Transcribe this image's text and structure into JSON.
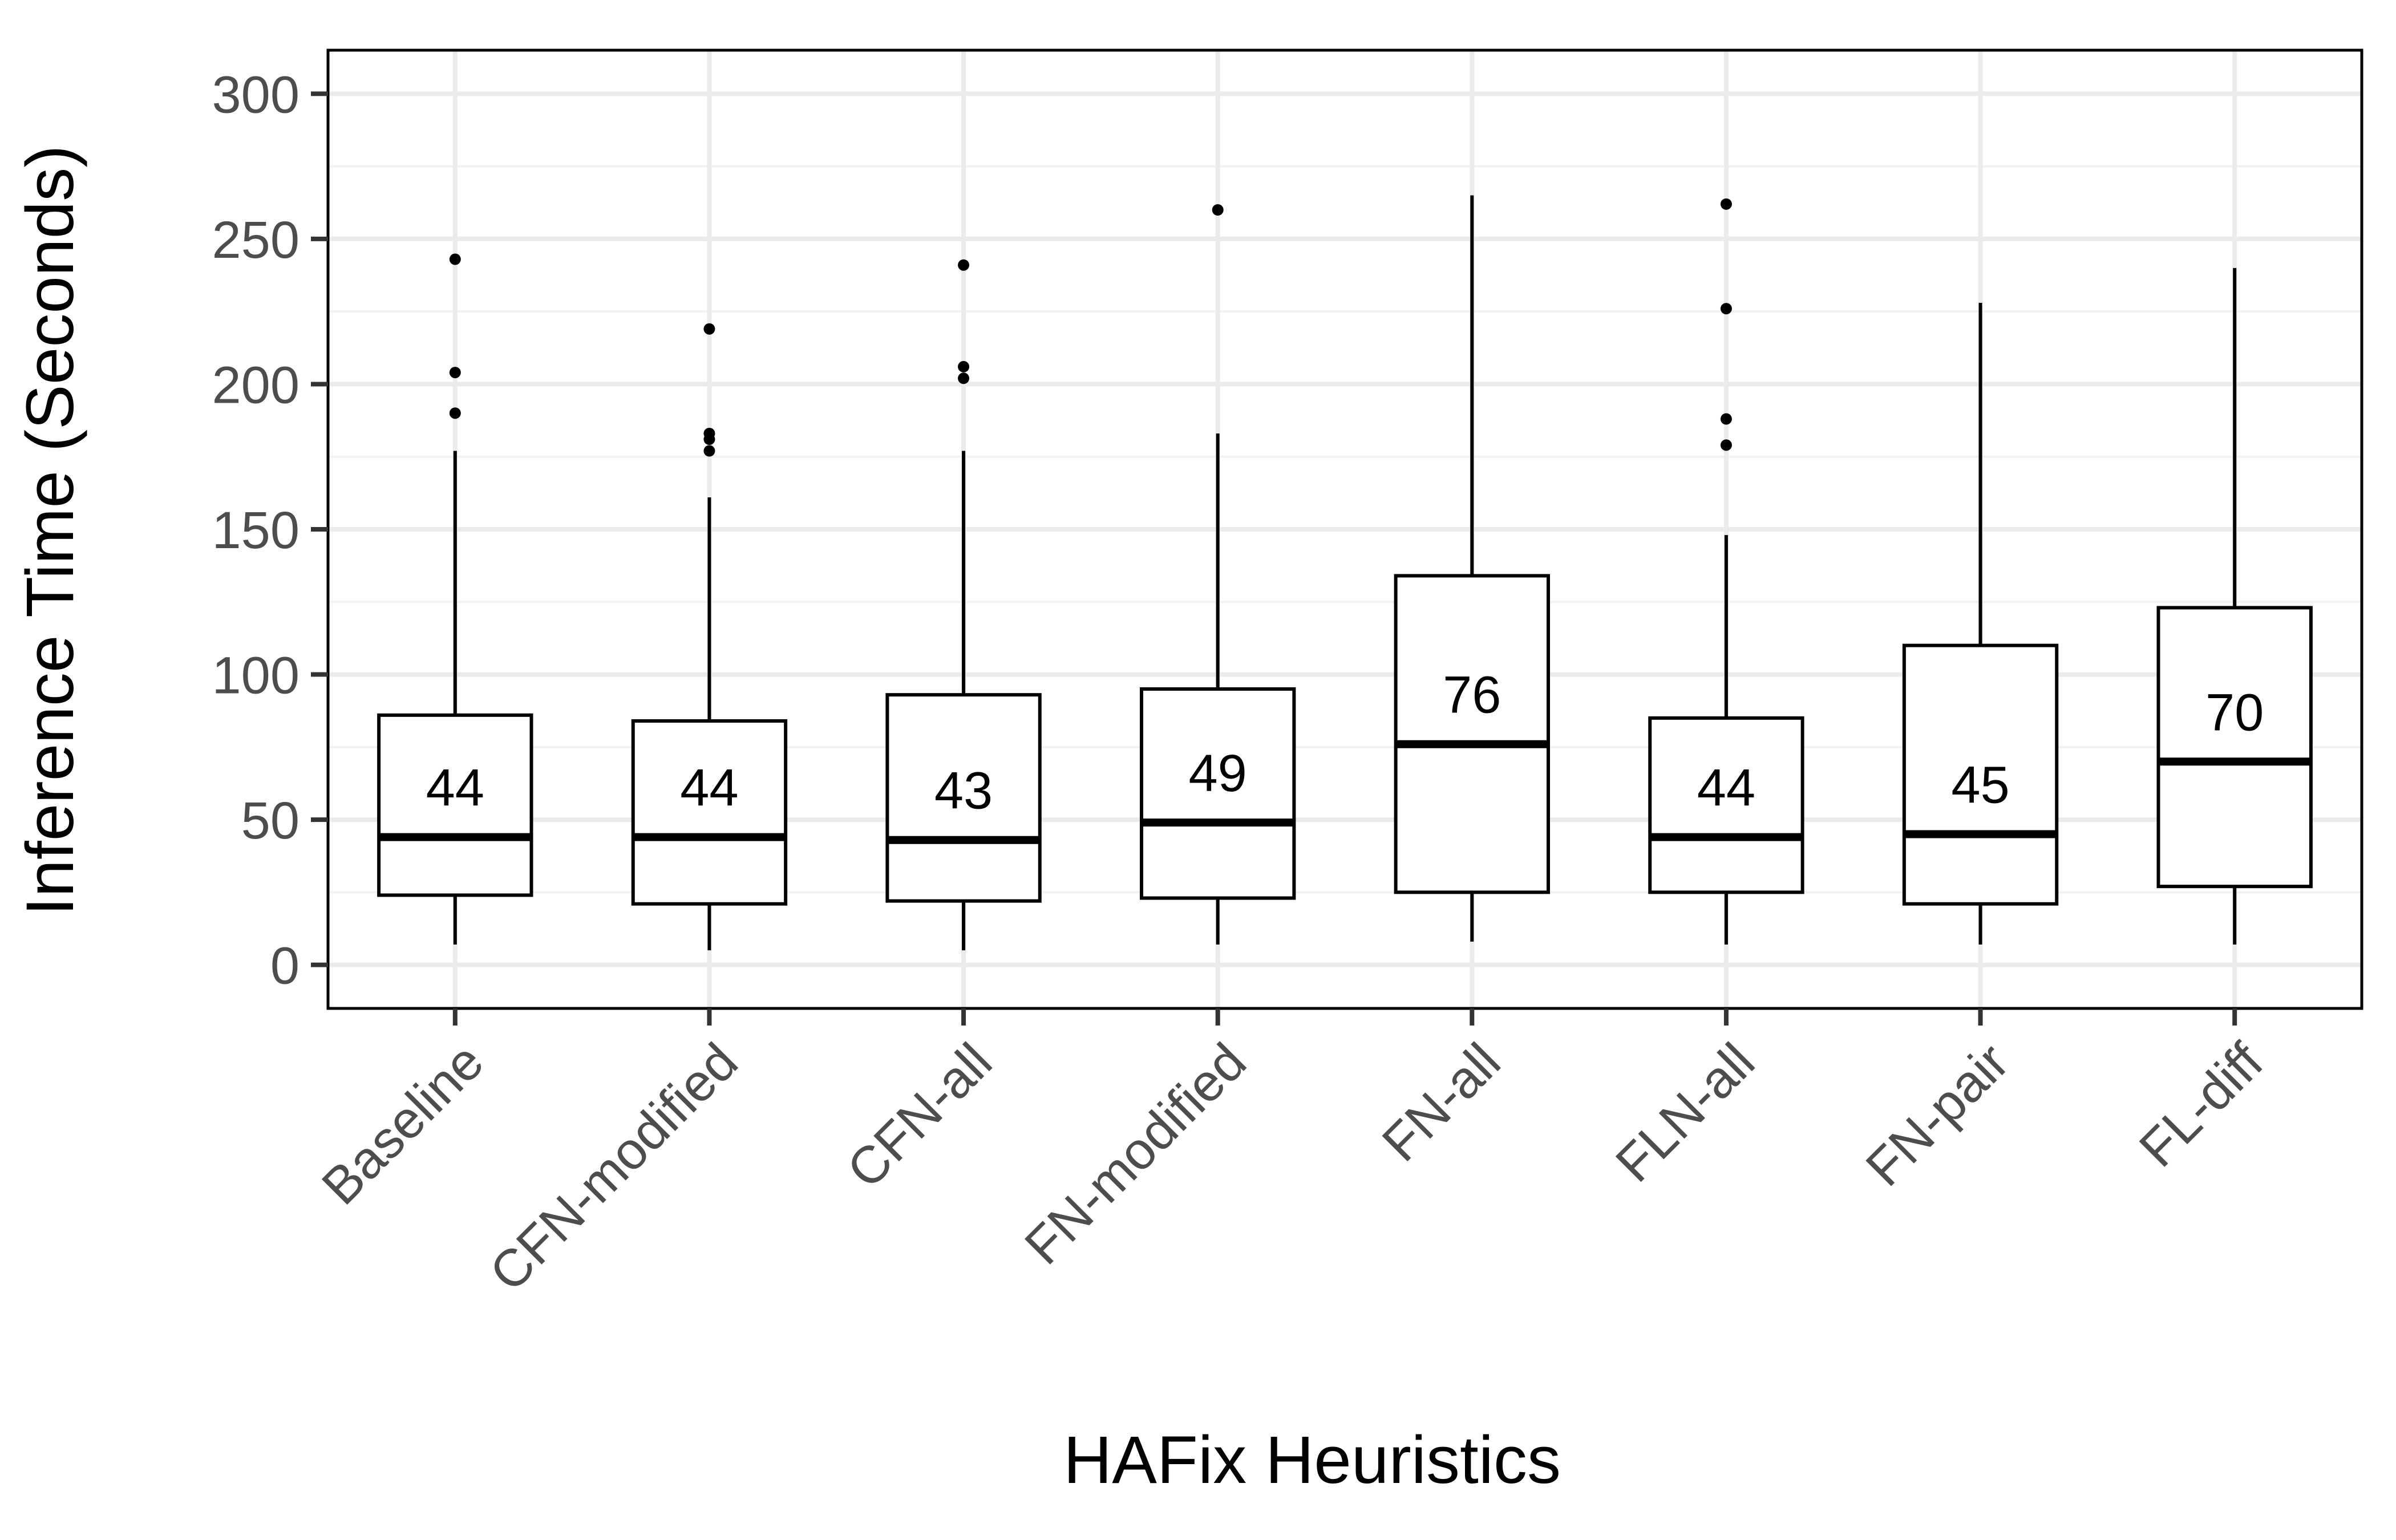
{
  "chart_data": {
    "type": "box",
    "title": "",
    "xlabel": "HAFix Heuristics",
    "ylabel": "Inference Time (Seconds)",
    "ylim": [
      -15,
      315
    ],
    "yticks": [
      0,
      50,
      100,
      150,
      200,
      250,
      300
    ],
    "grid": true,
    "legend": "none",
    "categories": [
      "Baseline",
      "CFN-modified",
      "CFN-all",
      "FN-modified",
      "FN-all",
      "FLN-all",
      "FN-pair",
      "FL-diff"
    ],
    "boxes": [
      {
        "category": "Baseline",
        "whisker_low": 7,
        "q1": 24,
        "median": 44,
        "q3": 86,
        "whisker_high": 177,
        "median_label": "44",
        "outliers": [
          190,
          204,
          243
        ]
      },
      {
        "category": "CFN-modified",
        "whisker_low": 5,
        "q1": 21,
        "median": 44,
        "q3": 84,
        "whisker_high": 161,
        "median_label": "44",
        "outliers": [
          177,
          181,
          183,
          219
        ]
      },
      {
        "category": "CFN-all",
        "whisker_low": 5,
        "q1": 22,
        "median": 43,
        "q3": 93,
        "whisker_high": 177,
        "median_label": "43",
        "outliers": [
          202,
          206,
          241
        ]
      },
      {
        "category": "FN-modified",
        "whisker_low": 7,
        "q1": 23,
        "median": 49,
        "q3": 95,
        "whisker_high": 183,
        "median_label": "49",
        "outliers": [
          260
        ]
      },
      {
        "category": "FN-all",
        "whisker_low": 8,
        "q1": 25,
        "median": 76,
        "q3": 134,
        "whisker_high": 265,
        "median_label": "76",
        "outliers": []
      },
      {
        "category": "FLN-all",
        "whisker_low": 7,
        "q1": 25,
        "median": 44,
        "q3": 85,
        "whisker_high": 148,
        "median_label": "44",
        "outliers": [
          179,
          188,
          226,
          262
        ]
      },
      {
        "category": "FN-pair",
        "whisker_low": 7,
        "q1": 21,
        "median": 45,
        "q3": 110,
        "whisker_high": 228,
        "median_label": "45",
        "outliers": []
      },
      {
        "category": "FL-diff",
        "whisker_low": 7,
        "q1": 27,
        "median": 70,
        "q3": 123,
        "whisker_high": 240,
        "median_label": "70",
        "outliers": []
      }
    ]
  }
}
